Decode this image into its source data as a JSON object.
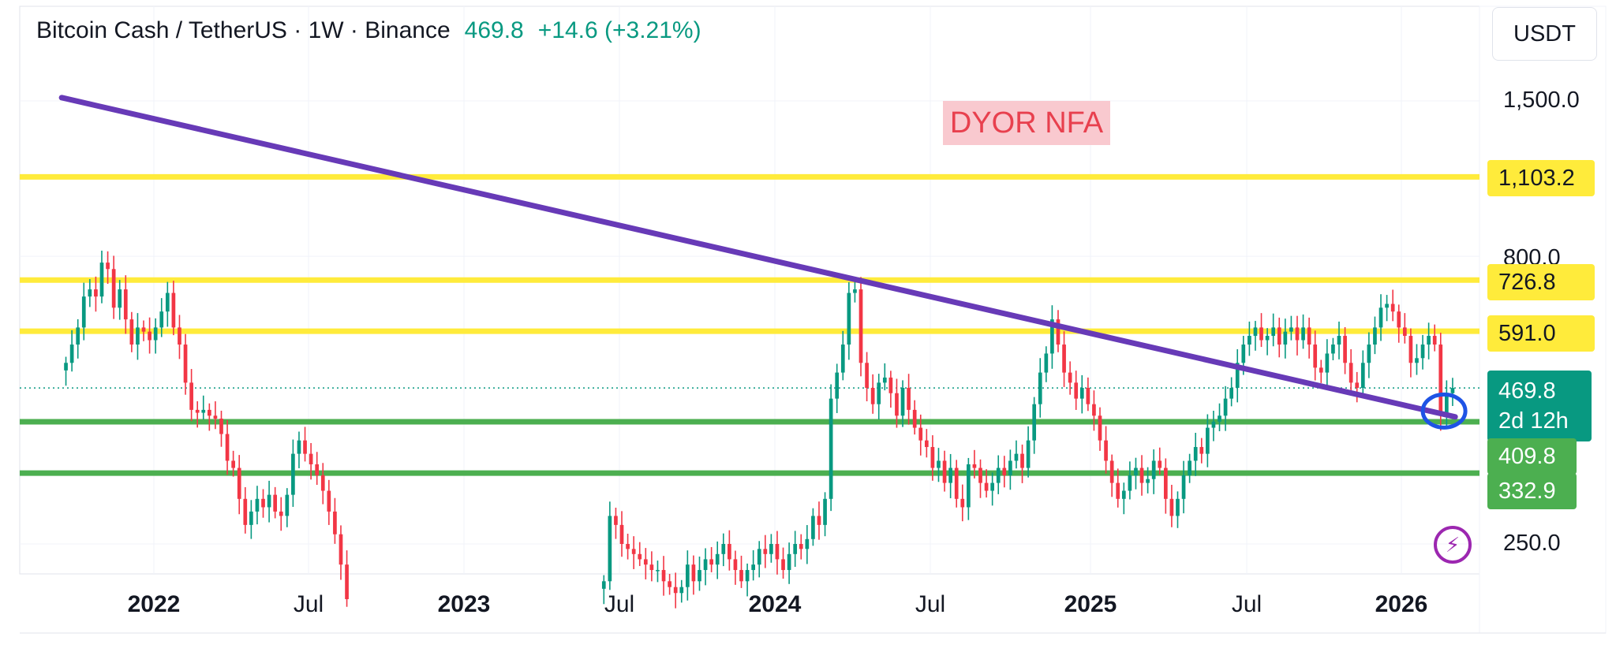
{
  "header": {
    "symbol": "Bitcoin Cash / TetherUS · 1W · Binance",
    "price": "469.8",
    "change": "+14.6 (+3.21%)"
  },
  "currency_button": "USDT",
  "annotation": "DYOR NFA",
  "price_axis_labels": [
    "1,500.0",
    "800.0",
    "250.0"
  ],
  "level_tags": {
    "level_1103": "1,103.2",
    "level_726": "726.8",
    "level_591": "591.0",
    "current_price": "469.8",
    "countdown": "2d 12h",
    "level_409": "409.8",
    "level_332": "332.9"
  },
  "time_axis_labels": [
    {
      "text": "2022",
      "bold": true
    },
    {
      "text": "Jul",
      "bold": false
    },
    {
      "text": "2023",
      "bold": true
    },
    {
      "text": "Jul",
      "bold": false
    },
    {
      "text": "2024",
      "bold": true
    },
    {
      "text": "Jul",
      "bold": false
    },
    {
      "text": "2025",
      "bold": true
    },
    {
      "text": "Jul",
      "bold": false
    },
    {
      "text": "2026",
      "bold": true
    }
  ],
  "colors": {
    "up": "#089981",
    "down": "#f23645",
    "resistance": "#ffeb3b",
    "support": "#4caf50",
    "trendline": "#673ab7",
    "highlight_circle": "#1e53e5"
  },
  "icon": "lightning-bolt-icon",
  "chart_data": {
    "type": "candlestick",
    "title": "Bitcoin Cash / TetherUS · 1W · Binance",
    "scale": "log",
    "unit": "USDT",
    "ylim": [
      210,
      1900
    ],
    "horizontal_levels": [
      {
        "value": 1103.2,
        "color": "#ffeb3b"
      },
      {
        "value": 726.8,
        "color": "#ffeb3b"
      },
      {
        "value": 591.0,
        "color": "#ffeb3b"
      },
      {
        "value": 409.8,
        "color": "#4caf50"
      },
      {
        "value": 332.9,
        "color": "#4caf50"
      }
    ],
    "trendline": {
      "start": {
        "date": "2021-09-15",
        "price": 1520
      },
      "end": {
        "date": "2026-03-05",
        "price": 418
      }
    },
    "current_price_line": 469.8,
    "segments": [
      {
        "start": "2021-09-20",
        "closes": [
          520,
          560,
          600,
          680,
          700,
          680,
          780,
          760,
          650,
          700,
          620,
          560,
          600,
          590,
          570,
          600,
          640,
          690,
          600,
          560,
          480,
          430,
          425,
          430,
          420,
          415,
          390,
          350,
          340,
          300,
          270,
          285,
          300,
          290,
          305,
          285,
          280,
          305,
          360,
          380,
          360,
          345,
          330,
          310,
          285,
          260,
          230,
          200
        ]
      },
      {
        "start": "2023-06-12",
        "closes": [
          215,
          280,
          270,
          250,
          245,
          240,
          235,
          230,
          225,
          225,
          215,
          210,
          205,
          210,
          230,
          215,
          225,
          235,
          230,
          240,
          250,
          235,
          225,
          215,
          225,
          230,
          245,
          240,
          250,
          235,
          225,
          240,
          250,
          245,
          255,
          280,
          270,
          300,
          450,
          500,
          560,
          690,
          700,
          520,
          470,
          440,
          480,
          490,
          460,
          420,
          470,
          430,
          400,
          380,
          370,
          340,
          350,
          320,
          340,
          300,
          290,
          345,
          340,
          320,
          310,
          320,
          340,
          330,
          350,
          360,
          340,
          380,
          440,
          500,
          540,
          620,
          560,
          500,
          480,
          450,
          470,
          440,
          420,
          380,
          350,
          320,
          300,
          310,
          330,
          340,
          320,
          325,
          350,
          340,
          300,
          280,
          300,
          330,
          350,
          370,
          360,
          400,
          410,
          420,
          450,
          470,
          520,
          560,
          580,
          600,
          570,
          580,
          600,
          560,
          590,
          600,
          570,
          600,
          560,
          510,
          500,
          540,
          560,
          580,
          520,
          480,
          470,
          520,
          560,
          600,
          650,
          660,
          640,
          600,
          580,
          520,
          530,
          560,
          580,
          560,
          420,
          460,
          469.8
        ]
      }
    ]
  }
}
